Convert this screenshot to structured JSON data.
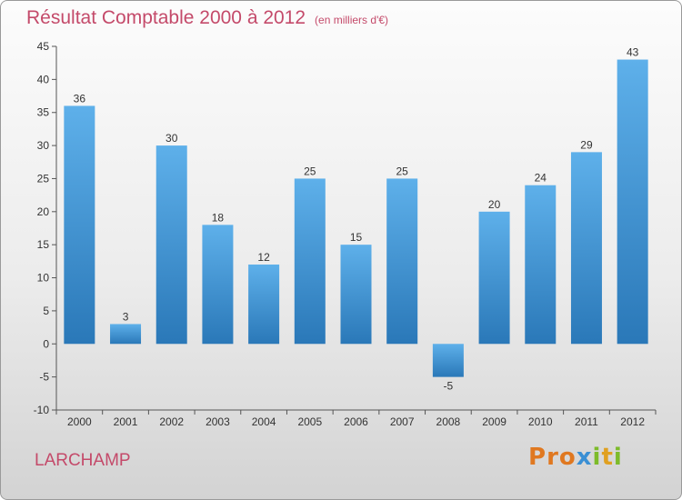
{
  "header": {
    "title": "Résultat Comptable 2000 à 2012",
    "unit": "(en milliers d'€)"
  },
  "footer": {
    "place": "LARCHAMP",
    "brand": "Proxiti"
  },
  "colors": {
    "title": "#c44a6a",
    "bar_light": "#5eb0ea",
    "bar_dark": "#2a78b8",
    "brand_letters": [
      "#e07820",
      "#e07820",
      "#e07820",
      "#3a8fd4",
      "#7dbb2a",
      "#e0a020",
      "#7dbb2a"
    ]
  },
  "chart_data": {
    "type": "bar",
    "title": "Résultat Comptable 2000 à 2012",
    "subtitle": "(en milliers d'€)",
    "xlabel": "",
    "ylabel": "",
    "categories": [
      "2000",
      "2001",
      "2002",
      "2003",
      "2004",
      "2005",
      "2006",
      "2007",
      "2008",
      "2009",
      "2010",
      "2011",
      "2012"
    ],
    "values": [
      36,
      3,
      30,
      18,
      12,
      25,
      15,
      25,
      -5,
      20,
      24,
      29,
      43
    ],
    "ylim": [
      -10,
      45
    ],
    "yticks": [
      -10,
      -5,
      0,
      5,
      10,
      15,
      20,
      25,
      30,
      35,
      40,
      45
    ],
    "grid": false,
    "legend": "none",
    "data_labels": true
  }
}
